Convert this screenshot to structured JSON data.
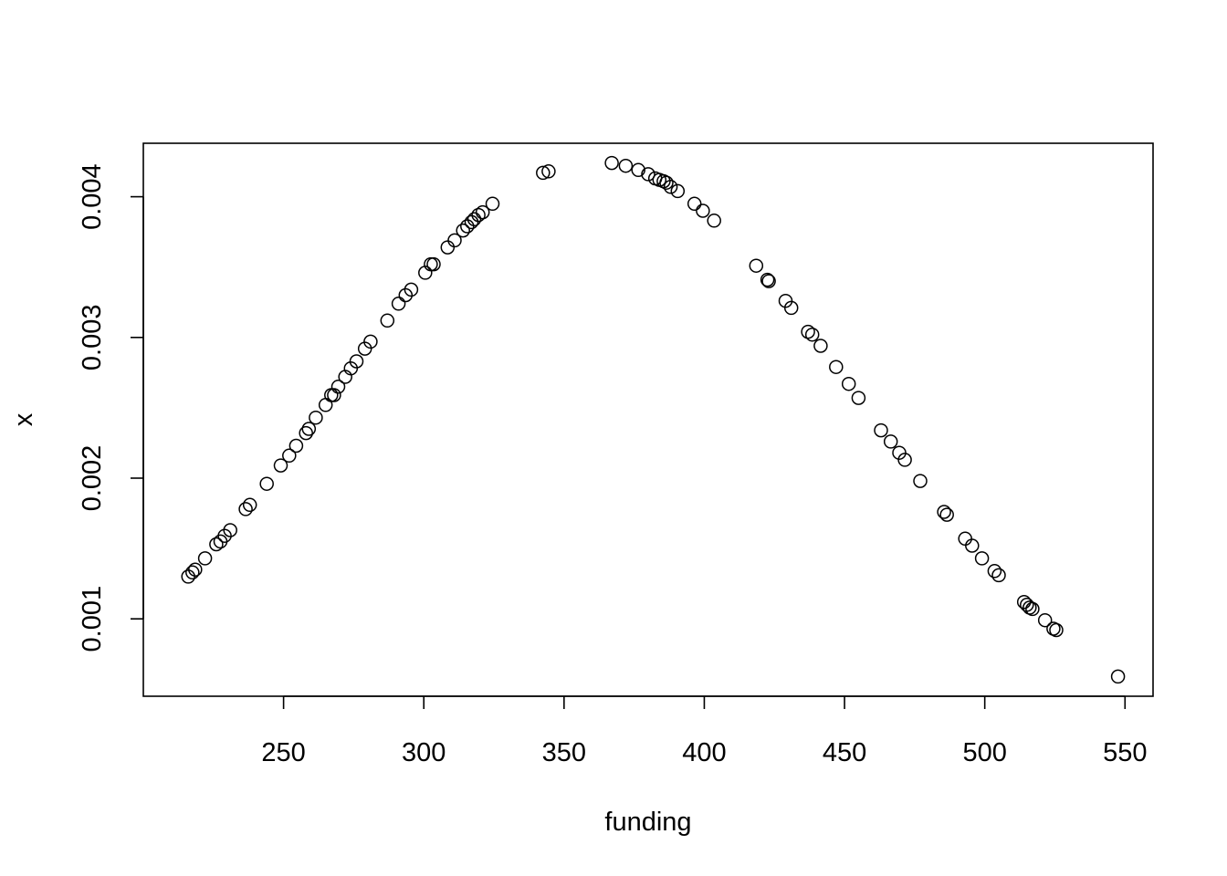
{
  "chart_data": {
    "type": "scatter",
    "title": "",
    "xlabel": "funding",
    "ylabel": "x",
    "xlim": [
      200,
      560
    ],
    "ylim": [
      0.00045,
      0.00438
    ],
    "x_ticks": [
      250,
      300,
      350,
      400,
      450,
      500,
      550
    ],
    "x_tick_labels": [
      "250",
      "300",
      "350",
      "400",
      "450",
      "500",
      "550"
    ],
    "y_ticks": [
      0.001,
      0.002,
      0.003,
      0.004
    ],
    "y_tick_labels": [
      "0.001",
      "0.002",
      "0.003",
      "0.004"
    ],
    "grid": false,
    "legend": "none",
    "marker": "open-circle",
    "colors": {
      "point": "#000000",
      "axis": "#000000",
      "background": "#ffffff"
    },
    "points": [
      {
        "x": 216.0,
        "y": 0.0013
      },
      {
        "x": 217.5,
        "y": 0.00133
      },
      {
        "x": 218.5,
        "y": 0.00135
      },
      {
        "x": 222.0,
        "y": 0.00143
      },
      {
        "x": 226.0,
        "y": 0.00153
      },
      {
        "x": 227.5,
        "y": 0.00155
      },
      {
        "x": 229.0,
        "y": 0.00159
      },
      {
        "x": 231.0,
        "y": 0.00163
      },
      {
        "x": 236.5,
        "y": 0.00178
      },
      {
        "x": 238.0,
        "y": 0.00181
      },
      {
        "x": 244.0,
        "y": 0.00196
      },
      {
        "x": 249.0,
        "y": 0.00209
      },
      {
        "x": 252.0,
        "y": 0.00216
      },
      {
        "x": 254.5,
        "y": 0.00223
      },
      {
        "x": 258.0,
        "y": 0.00232
      },
      {
        "x": 259.0,
        "y": 0.00235
      },
      {
        "x": 261.5,
        "y": 0.00243
      },
      {
        "x": 265.0,
        "y": 0.00252
      },
      {
        "x": 267.0,
        "y": 0.00259
      },
      {
        "x": 268.0,
        "y": 0.00259
      },
      {
        "x": 269.5,
        "y": 0.00265
      },
      {
        "x": 272.0,
        "y": 0.00272
      },
      {
        "x": 274.0,
        "y": 0.00278
      },
      {
        "x": 276.0,
        "y": 0.00283
      },
      {
        "x": 279.0,
        "y": 0.00292
      },
      {
        "x": 281.0,
        "y": 0.00297
      },
      {
        "x": 287.0,
        "y": 0.00312
      },
      {
        "x": 291.0,
        "y": 0.00324
      },
      {
        "x": 293.5,
        "y": 0.0033
      },
      {
        "x": 295.5,
        "y": 0.00334
      },
      {
        "x": 300.5,
        "y": 0.00346
      },
      {
        "x": 302.5,
        "y": 0.00352
      },
      {
        "x": 303.5,
        "y": 0.00352
      },
      {
        "x": 308.5,
        "y": 0.00364
      },
      {
        "x": 311.0,
        "y": 0.00369
      },
      {
        "x": 314.0,
        "y": 0.00376
      },
      {
        "x": 315.5,
        "y": 0.00379
      },
      {
        "x": 317.0,
        "y": 0.00382
      },
      {
        "x": 318.0,
        "y": 0.00384
      },
      {
        "x": 319.5,
        "y": 0.00387
      },
      {
        "x": 321.0,
        "y": 0.00389
      },
      {
        "x": 324.5,
        "y": 0.00395
      },
      {
        "x": 342.5,
        "y": 0.00417
      },
      {
        "x": 344.5,
        "y": 0.00418
      },
      {
        "x": 367.0,
        "y": 0.00424
      },
      {
        "x": 372.0,
        "y": 0.00422
      },
      {
        "x": 376.5,
        "y": 0.00419
      },
      {
        "x": 380.0,
        "y": 0.00416
      },
      {
        "x": 382.5,
        "y": 0.00413
      },
      {
        "x": 384.0,
        "y": 0.00412
      },
      {
        "x": 385.5,
        "y": 0.00411
      },
      {
        "x": 386.5,
        "y": 0.0041
      },
      {
        "x": 388.0,
        "y": 0.00407
      },
      {
        "x": 390.5,
        "y": 0.00404
      },
      {
        "x": 396.5,
        "y": 0.00395
      },
      {
        "x": 399.5,
        "y": 0.0039
      },
      {
        "x": 403.5,
        "y": 0.00383
      },
      {
        "x": 418.5,
        "y": 0.00351
      },
      {
        "x": 422.5,
        "y": 0.00341
      },
      {
        "x": 423.0,
        "y": 0.0034
      },
      {
        "x": 429.0,
        "y": 0.00326
      },
      {
        "x": 431.0,
        "y": 0.00321
      },
      {
        "x": 437.0,
        "y": 0.00304
      },
      {
        "x": 438.5,
        "y": 0.00302
      },
      {
        "x": 441.5,
        "y": 0.00294
      },
      {
        "x": 447.0,
        "y": 0.00279
      },
      {
        "x": 451.5,
        "y": 0.00267
      },
      {
        "x": 455.0,
        "y": 0.00257
      },
      {
        "x": 463.0,
        "y": 0.00234
      },
      {
        "x": 466.5,
        "y": 0.00226
      },
      {
        "x": 469.5,
        "y": 0.00218
      },
      {
        "x": 471.5,
        "y": 0.00213
      },
      {
        "x": 477.0,
        "y": 0.00198
      },
      {
        "x": 485.5,
        "y": 0.00176
      },
      {
        "x": 486.5,
        "y": 0.00174
      },
      {
        "x": 493.0,
        "y": 0.00157
      },
      {
        "x": 495.5,
        "y": 0.00152
      },
      {
        "x": 499.0,
        "y": 0.00143
      },
      {
        "x": 503.5,
        "y": 0.00134
      },
      {
        "x": 505.0,
        "y": 0.00131
      },
      {
        "x": 514.0,
        "y": 0.00112
      },
      {
        "x": 515.0,
        "y": 0.0011
      },
      {
        "x": 516.0,
        "y": 0.00108
      },
      {
        "x": 517.0,
        "y": 0.00107
      },
      {
        "x": 521.5,
        "y": 0.00099
      },
      {
        "x": 524.5,
        "y": 0.00093
      },
      {
        "x": 525.5,
        "y": 0.00092
      },
      {
        "x": 547.5,
        "y": 0.00059
      }
    ]
  }
}
